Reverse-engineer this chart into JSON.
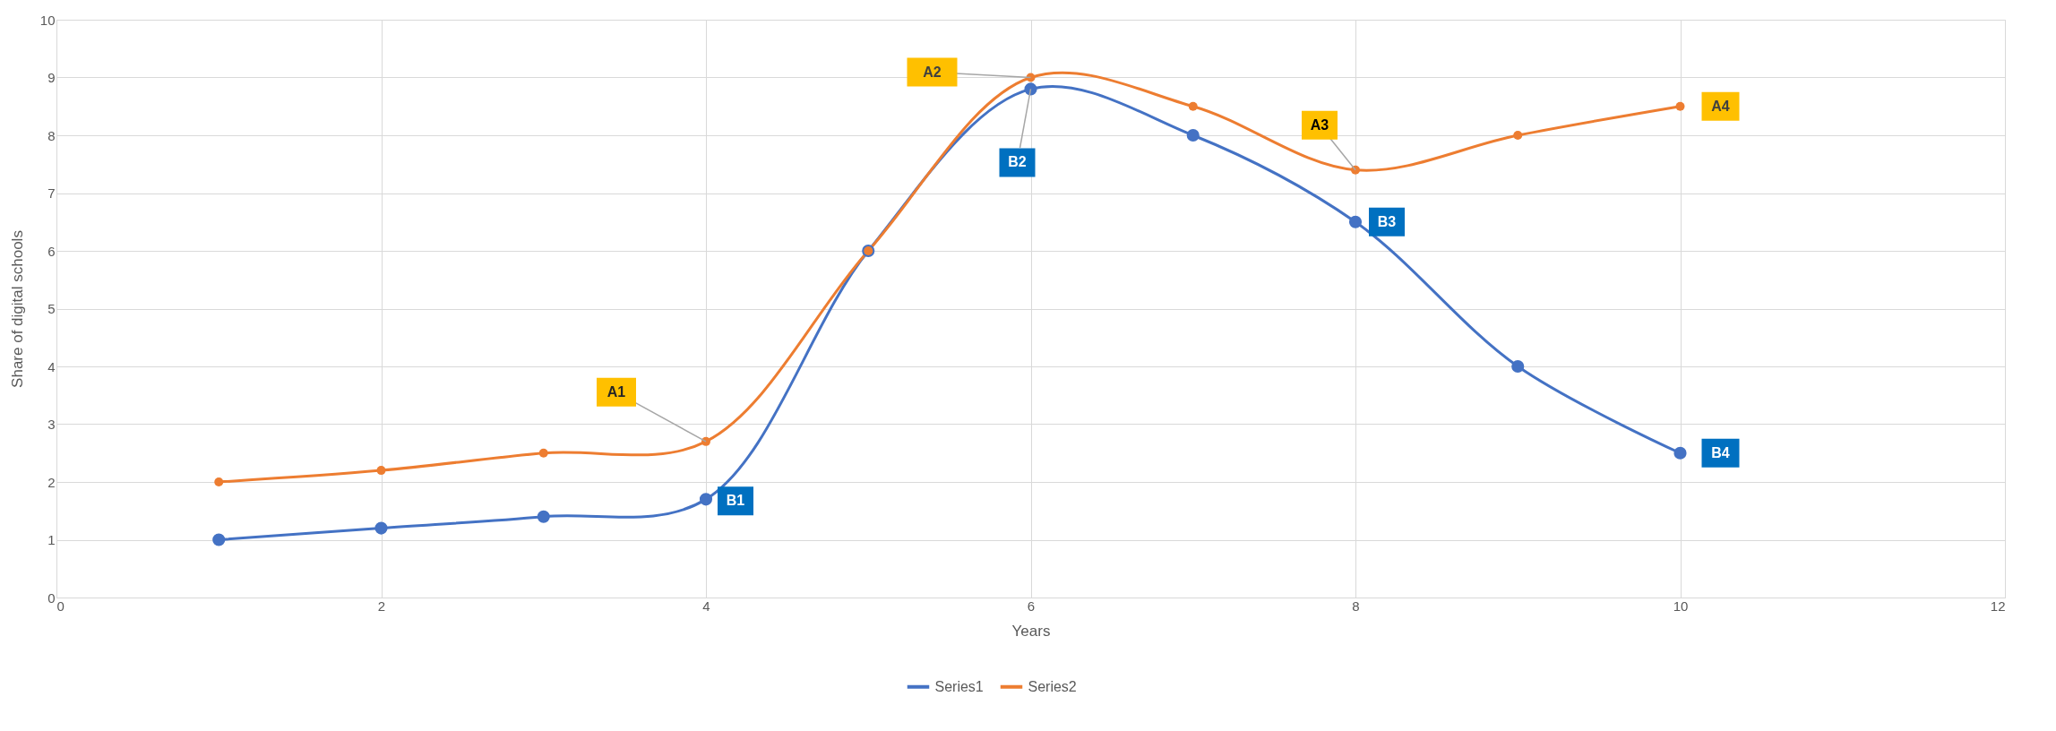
{
  "chart_data": {
    "type": "line",
    "x": [
      1,
      2,
      3,
      4,
      5,
      6,
      7,
      8,
      9,
      10
    ],
    "xlabel": "Years",
    "ylabel": "Share of digital schools",
    "series": [
      {
        "name": "Series1",
        "color": "#4472c4",
        "values": [
          1,
          1.2,
          1.4,
          1.7,
          6,
          8.8,
          8,
          6.5,
          4,
          2.5
        ]
      },
      {
        "name": "Series2",
        "color": "#ed7d31",
        "values": [
          2,
          2.2,
          2.5,
          2.7,
          6,
          9,
          8.5,
          7.4,
          8,
          8.5
        ]
      }
    ],
    "annotations": [
      {
        "text": "A1",
        "x": 4,
        "y": 2.7
      },
      {
        "text": "A2",
        "x": 6,
        "y": 9
      },
      {
        "text": "A3",
        "x": 8,
        "y": 7.4
      },
      {
        "text": "A4",
        "x": 10,
        "y": 8.5
      },
      {
        "text": "B1",
        "x": 4,
        "y": 1.7
      },
      {
        "text": "B2",
        "x": 6,
        "y": 8.8
      },
      {
        "text": "B3",
        "x": 8,
        "y": 6.5
      },
      {
        "text": "B4",
        "x": 10,
        "y": 2.5
      }
    ],
    "xlim": [
      0,
      12
    ],
    "xticks": [
      0,
      2,
      4,
      6,
      8,
      10,
      12
    ],
    "ylim": [
      0,
      10
    ],
    "yticks": [
      0,
      1,
      2,
      3,
      4,
      5,
      6,
      7,
      8,
      9,
      10
    ],
    "grid": true,
    "legend": "bottom",
    "marker": "circle",
    "line_style": "solid"
  }
}
